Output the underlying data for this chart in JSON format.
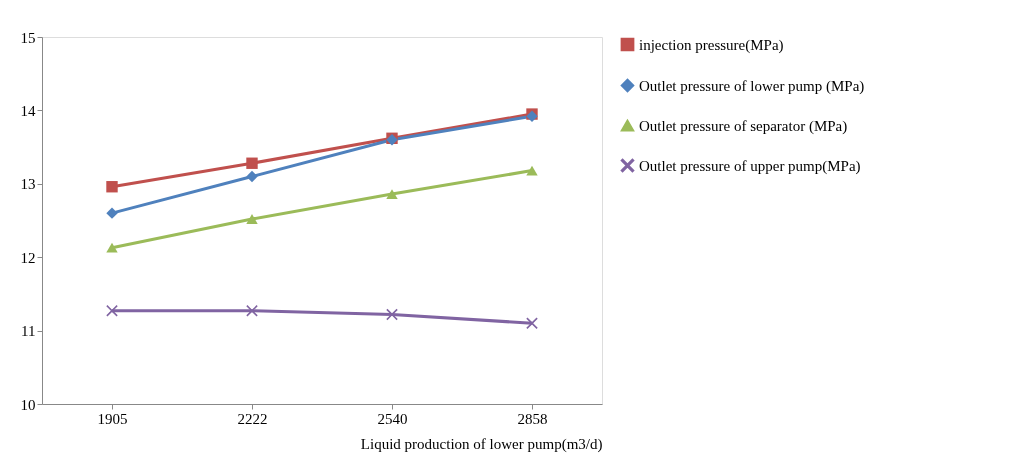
{
  "chart_data": {
    "type": "line",
    "categories": [
      "1905",
      "2222",
      "2540",
      "2858"
    ],
    "xlabel": "Liquid production of lower pump(m3/d)",
    "ylim": [
      10,
      15
    ],
    "yticks": [
      10,
      11,
      12,
      13,
      14,
      15
    ],
    "grid": false,
    "legend": "right",
    "series": [
      {
        "name": "injection pressure(MPa)",
        "color": "#c0504d",
        "marker": "square",
        "values": [
          12.96,
          13.28,
          13.62,
          13.95
        ]
      },
      {
        "name": "Outlet pressure of lower pump (MPa)",
        "color": "#4f81bd",
        "marker": "diamond",
        "values": [
          12.6,
          13.1,
          13.6,
          13.92
        ]
      },
      {
        "name": "Outlet pressure of separator (MPa)",
        "color": "#9bbb59",
        "marker": "triangle",
        "values": [
          12.13,
          12.52,
          12.86,
          13.18
        ]
      },
      {
        "name": "Outlet pressure of upper pump(MPa)",
        "color": "#8064a2",
        "marker": "cross",
        "values": [
          11.27,
          11.27,
          11.22,
          11.1
        ]
      }
    ]
  }
}
